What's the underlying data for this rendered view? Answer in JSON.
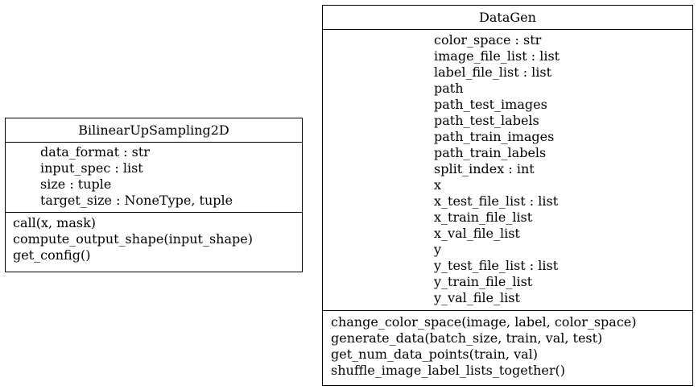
{
  "classes": {
    "bilinear": {
      "name": "BilinearUpSampling2D",
      "attributes": [
        "data_format : str",
        "input_spec : list",
        "size : tuple",
        "target_size : NoneType, tuple"
      ],
      "methods": [
        "call(x, mask)",
        "compute_output_shape(input_shape)",
        "get_config()"
      ]
    },
    "datagen": {
      "name": "DataGen",
      "attributes": [
        "color_space : str",
        "image_file_list : list",
        "label_file_list : list",
        "path",
        "path_test_images",
        "path_test_labels",
        "path_train_images",
        "path_train_labels",
        "split_index : int",
        "x",
        "x_test_file_list : list",
        "x_train_file_list",
        "x_val_file_list",
        "y",
        "y_test_file_list : list",
        "y_train_file_list",
        "y_val_file_list"
      ],
      "methods": [
        "change_color_space(image, label, color_space)",
        "generate_data(batch_size, train, val, test)",
        "get_num_data_points(train, val)",
        "shuffle_image_label_lists_together()"
      ]
    }
  }
}
